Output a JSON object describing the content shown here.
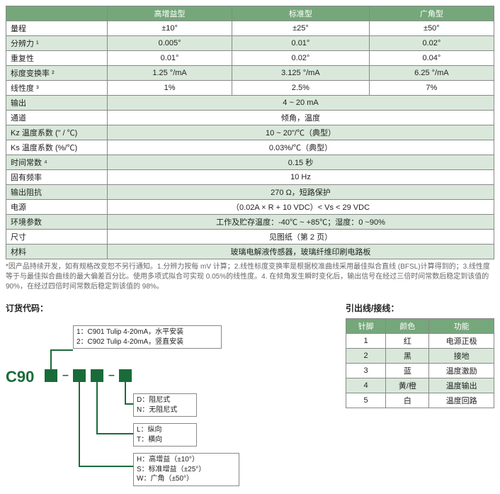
{
  "spec_table": {
    "header_cells": [
      "",
      "高增益型",
      "标准型",
      "广角型"
    ],
    "rows": [
      {
        "label": "量程",
        "cells": [
          "±10°",
          "±25°",
          "±50°"
        ],
        "alt": false
      },
      {
        "label": "分辨力 ¹",
        "cells": [
          "0.005°",
          "0.01°",
          "0.02°"
        ],
        "alt": true
      },
      {
        "label": "重复性",
        "cells": [
          "0.01°",
          "0.02°",
          "0.04°"
        ],
        "alt": false
      },
      {
        "label": "标度变换率 ²",
        "cells": [
          "1.25 °/mA",
          "3.125 °/mA",
          "6.25 °/mA"
        ],
        "alt": true
      },
      {
        "label": "线性度 ³",
        "cells": [
          "1%",
          "2.5%",
          "7%"
        ],
        "alt": false
      },
      {
        "label": "输出",
        "span": "4 ~ 20 mA",
        "alt": true
      },
      {
        "label": "通道",
        "span": "倾角，温度",
        "alt": false
      },
      {
        "label": "Kz 温度系数 (\" / ℃)",
        "span": "10 ~ 20\"/℃（典型）",
        "alt": true
      },
      {
        "label": "Ks 温度系数 (%/℃)",
        "span": "0.03%/℃（典型）",
        "alt": false
      },
      {
        "label": "时间常数 ⁴",
        "span": "0.15 秒",
        "alt": true
      },
      {
        "label": "固有频率",
        "span": "10 Hz",
        "alt": false
      },
      {
        "label": "输出阻抗",
        "span": "270 Ω，短路保护",
        "alt": true
      },
      {
        "label": "电源",
        "span": "（0.02A × R + 10 VDC）< Vs < 29 VDC",
        "alt": false
      },
      {
        "label": "环境参数",
        "span": "工作及贮存温度：-40℃ ~ +85℃；湿度：0 ~90%",
        "alt": true
      },
      {
        "label": "尺寸",
        "span": "见图纸（第 2 页）",
        "alt": false
      },
      {
        "label": "材料",
        "span": "玻璃电解液传感器，玻璃纤维印刷电路板",
        "alt": true
      }
    ]
  },
  "footnote": "*因产品持续开发，如有规格改变恕不另行通知。1.分辨力按每 mV 计算；2.线性标度变换率是根据校准曲线采用最佳拟合直线 (BFSL)计算得到的；3.线性度等于与最佳拟合曲线的最大偏差百分比。使用多项式拟合可实现 0.05%的线性度。4. 在倾角发生瞬时变化后，输出信号在经过三倍时间常数后稳定到该值的 90%，在经过四倍时间常数后稳定到该值的 98%。",
  "order_title": "订货代码：",
  "pin_title": "引出线/接线：",
  "c90_label": "C90",
  "opt_boxes": {
    "b1": "1：C901 Tulip 4-20mA，水平安装\n2：C902 Tulip 4-20mA，竖直安装",
    "b2": "D：阻尼式\nN：无阻尼式",
    "b3": "L：纵向\nT：横向",
    "b4": "H：高增益（±10°）\nS：标准增益（±25°）\nW：广角（±50°）"
  },
  "pin_table": {
    "header": [
      "针脚",
      "颜色",
      "功能"
    ],
    "rows": [
      {
        "cells": [
          "1",
          "红",
          "电源正极"
        ],
        "alt": false
      },
      {
        "cells": [
          "2",
          "黑",
          "接地"
        ],
        "alt": true
      },
      {
        "cells": [
          "3",
          "蓝",
          "温度激励"
        ],
        "alt": false
      },
      {
        "cells": [
          "4",
          "黄/橙",
          "温度输出"
        ],
        "alt": true
      },
      {
        "cells": [
          "5",
          "白",
          "温度回路"
        ],
        "alt": false
      }
    ]
  },
  "colors": {
    "header_bg": "#76a77b",
    "alt_bg": "#d9e8da",
    "brand_green": "#1a6b3a"
  }
}
